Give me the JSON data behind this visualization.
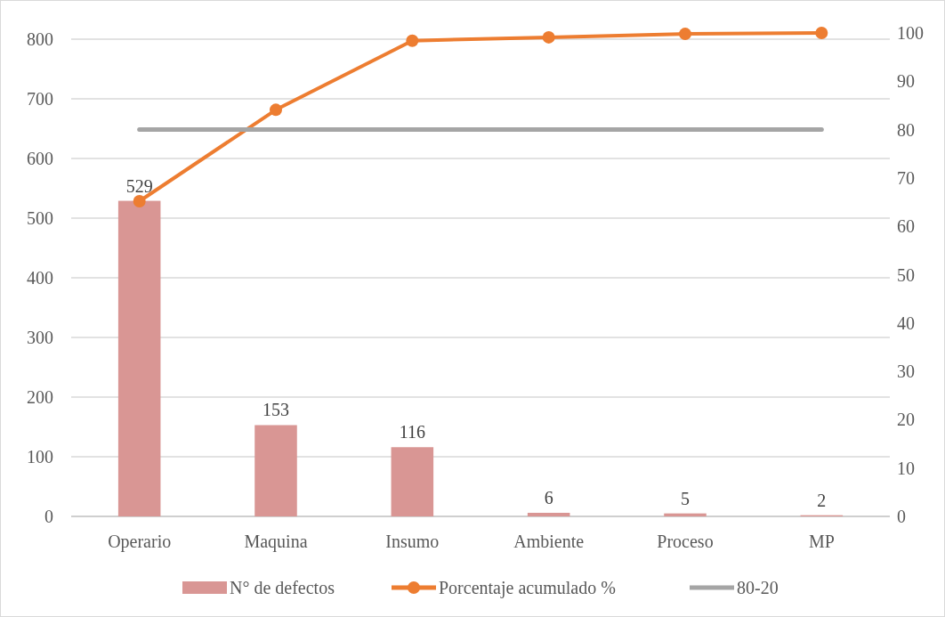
{
  "chart_data": {
    "type": "bar",
    "categories": [
      "Operario",
      "Maquina",
      "Insumo",
      "Ambiente",
      "Proceso",
      "MP"
    ],
    "series": [
      {
        "name": "N° de defectos",
        "color": "#d99694",
        "values": [
          529,
          153,
          116,
          6,
          5,
          2
        ],
        "value_labels": [
          "529",
          "153",
          "116",
          "6",
          "5",
          "2"
        ]
      },
      {
        "name": "Porcentaje acumulado %",
        "type": "line",
        "axis": "y2",
        "color": "#ed7d31",
        "marker": "circle",
        "values": [
          65.2,
          84.1,
          98.4,
          99.1,
          99.8,
          100
        ]
      },
      {
        "name": "80-20",
        "type": "line",
        "axis": "y2",
        "color": "#a5a5a5",
        "marker": "none",
        "values": [
          80,
          80,
          80,
          80,
          80,
          80
        ]
      }
    ],
    "ylim": [
      0,
      800
    ],
    "yticks": [
      0,
      100,
      200,
      300,
      400,
      500,
      600,
      700,
      800
    ],
    "y2lim": [
      0,
      100
    ],
    "y2ticks": [
      0,
      10,
      20,
      30,
      40,
      50,
      60,
      70,
      80,
      90,
      100
    ],
    "grid": "y",
    "legend": "bottom"
  }
}
